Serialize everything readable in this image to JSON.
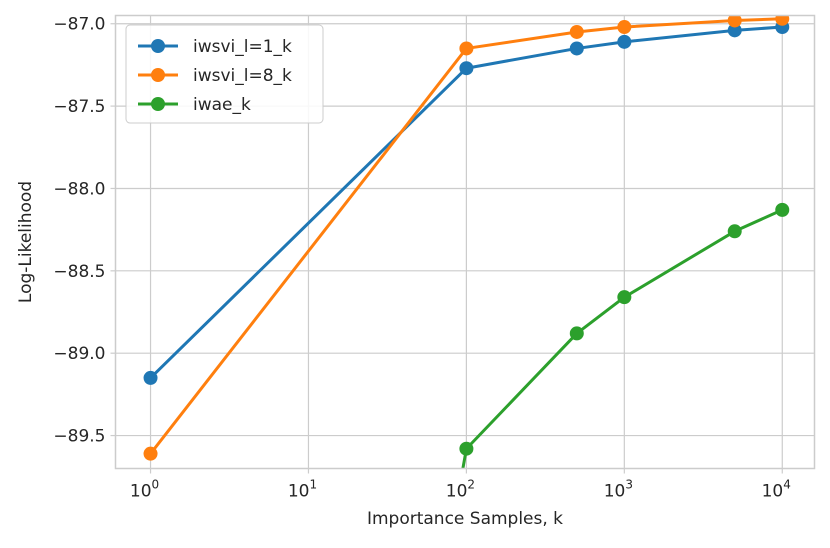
{
  "chart_data": {
    "type": "line",
    "title": "",
    "xlabel": "Importance Samples, k",
    "ylabel": "Log-Likelihood",
    "xscale": "log",
    "xlim": [
      0.6,
      16000
    ],
    "ylim": [
      -89.7,
      -86.95
    ],
    "grid": true,
    "legend_position": "top-left",
    "x_ticks": [
      {
        "value": 1,
        "base": "10",
        "exp": "0"
      },
      {
        "value": 10,
        "base": "10",
        "exp": "1"
      },
      {
        "value": 100,
        "base": "10",
        "exp": "2"
      },
      {
        "value": 1000,
        "base": "10",
        "exp": "3"
      },
      {
        "value": 10000,
        "base": "10",
        "exp": "4"
      }
    ],
    "y_ticks": [
      {
        "value": -87.0,
        "label": "−87.0"
      },
      {
        "value": -87.5,
        "label": "−87.5"
      },
      {
        "value": -88.0,
        "label": "−88.0"
      },
      {
        "value": -88.5,
        "label": "−88.5"
      },
      {
        "value": -89.0,
        "label": "−89.0"
      },
      {
        "value": -89.5,
        "label": "−89.5"
      }
    ],
    "series": [
      {
        "name": "iwsvi_l=1_k",
        "color": "#1f77b4",
        "x": [
          1,
          100,
          500,
          1000,
          5000,
          10000
        ],
        "y": [
          -89.15,
          -87.27,
          -87.15,
          -87.11,
          -87.04,
          -87.02
        ]
      },
      {
        "name": "iwsvi_l=8_k",
        "color": "#ff7f0e",
        "x": [
          1,
          100,
          500,
          1000,
          5000,
          10000
        ],
        "y": [
          -89.61,
          -87.15,
          -87.05,
          -87.02,
          -86.98,
          -86.97
        ]
      },
      {
        "name": "iwae_k",
        "color": "#2ca02c",
        "x": [
          100,
          500,
          1000,
          5000,
          10000
        ],
        "y": [
          -89.58,
          -88.88,
          -88.66,
          -88.26,
          -88.13
        ],
        "line_start": {
          "x": 95,
          "y": -89.7
        }
      }
    ]
  }
}
